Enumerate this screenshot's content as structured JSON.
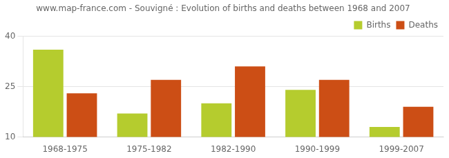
{
  "chart_data": {
    "type": "bar",
    "title": "www.map-france.com - Souvigné : Evolution of births and deaths between 1968 and 2007",
    "categories": [
      "1968-1975",
      "1975-1982",
      "1982-1990",
      "1990-1999",
      "1999-2007"
    ],
    "series": [
      {
        "name": "Births",
        "color": "#b5cc2e",
        "values": [
          36,
          17,
          20,
          24,
          13
        ]
      },
      {
        "name": "Deaths",
        "color": "#cc4e15",
        "values": [
          23,
          27,
          31,
          27,
          19
        ]
      }
    ],
    "ylim": [
      10,
      40
    ],
    "yticks": [
      10,
      25,
      40
    ],
    "grid": true,
    "legend": "upper right"
  }
}
